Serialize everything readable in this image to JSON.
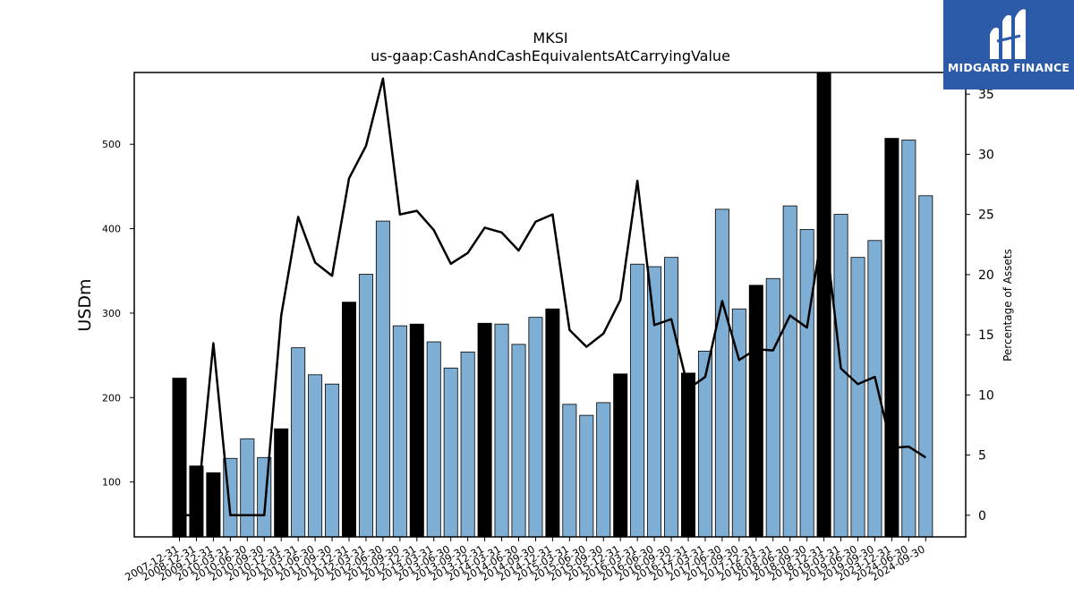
{
  "brand": {
    "name": "MIDGARD FINANCE"
  },
  "chart_data": {
    "type": "bar",
    "title": "MKSI",
    "subtitle": "us-gaap:CashAndCashEquivalentsAtCarryingValue",
    "ylabel": "USDm",
    "y2label": "Percentage of Assets",
    "ylim": [
      35,
      585
    ],
    "y2lim": [
      -1.8,
      36.8
    ],
    "yticks": [
      100,
      200,
      300,
      400,
      500
    ],
    "y2ticks": [
      0,
      5,
      10,
      15,
      20,
      25,
      30,
      35
    ],
    "grid": false,
    "colors": {
      "bar": "#7eaed3",
      "bar_annual": "#000000",
      "line": "#000000"
    },
    "categories": [
      "2007-12-31",
      "2008-12-31",
      "2009-12-31",
      "2010-03-31",
      "2010-06-30",
      "2010-09-30",
      "2010-12-31",
      "2011-03-31",
      "2011-06-30",
      "2011-09-30",
      "2011-12-31",
      "2012-03-31",
      "2012-06-30",
      "2012-09-30",
      "2012-12-31",
      "2013-03-31",
      "2013-06-30",
      "2013-09-30",
      "2013-12-31",
      "2014-03-31",
      "2014-06-30",
      "2014-09-30",
      "2014-12-31",
      "2015-03-31",
      "2015-06-30",
      "2015-09-30",
      "2015-12-31",
      "2016-03-31",
      "2016-06-30",
      "2016-09-30",
      "2016-12-31",
      "2017-03-31",
      "2017-06-30",
      "2017-09-30",
      "2017-12-31",
      "2018-03-31",
      "2018-06-30",
      "2018-09-30",
      "2018-12-31",
      "2019-03-31",
      "2019-06-30",
      "2019-09-30",
      "2023-12-31",
      "2024-06-30",
      "2024-09-30"
    ],
    "series": [
      {
        "kind": "bar",
        "values": [
          223,
          119,
          111,
          128,
          151,
          129,
          163,
          259,
          227,
          216,
          313,
          346,
          409,
          285,
          287,
          266,
          235,
          254,
          288,
          287,
          263,
          295,
          305,
          192,
          179,
          194,
          228,
          358,
          355,
          366,
          229,
          255,
          423,
          305,
          333,
          341,
          427,
          399,
          585,
          417,
          366,
          386,
          507,
          505,
          439
        ],
        "annual": [
          true,
          true,
          true,
          false,
          false,
          false,
          true,
          false,
          false,
          false,
          true,
          false,
          false,
          false,
          true,
          false,
          false,
          false,
          true,
          false,
          false,
          false,
          true,
          false,
          false,
          false,
          true,
          false,
          false,
          false,
          true,
          false,
          false,
          false,
          true,
          false,
          false,
          false,
          true,
          false,
          false,
          false,
          true,
          false,
          false
        ]
      },
      {
        "kind": "line",
        "axis": "right",
        "values": [
          0,
          0,
          14.3,
          0,
          0,
          0,
          16.6,
          24.8,
          21.0,
          19.9,
          28.0,
          30.7,
          36.3,
          25.0,
          25.3,
          23.7,
          20.9,
          21.8,
          23.9,
          23.5,
          22.0,
          24.4,
          25.0,
          15.4,
          14.0,
          15.1,
          17.9,
          27.8,
          15.8,
          16.3,
          10.5,
          11.5,
          17.8,
          12.9,
          13.8,
          13.7,
          16.6,
          15.6,
          24.5,
          12.2,
          10.9,
          11.5,
          5.6,
          5.7,
          4.8
        ]
      }
    ]
  }
}
